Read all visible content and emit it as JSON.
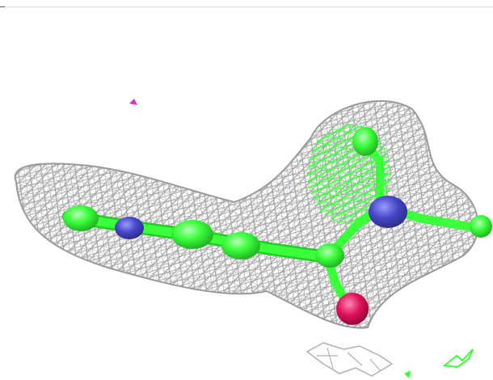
{
  "scene": {
    "description_free": true,
    "colors": {
      "background": "#ffffff",
      "mesh": "#a9a9a9",
      "mesh_dark": "#8c8c8c",
      "carbon": "#3bff3b",
      "carbon_dark": "#22cc22",
      "nitrogen": "#4646c8",
      "oxygen": "#e0105a",
      "stray_density": "#cc33cc",
      "rule": "#d9d9d9"
    },
    "icons": {
      "mesh": "electron-density-mesh",
      "molecule": "ball-and-stick-molecule"
    }
  }
}
